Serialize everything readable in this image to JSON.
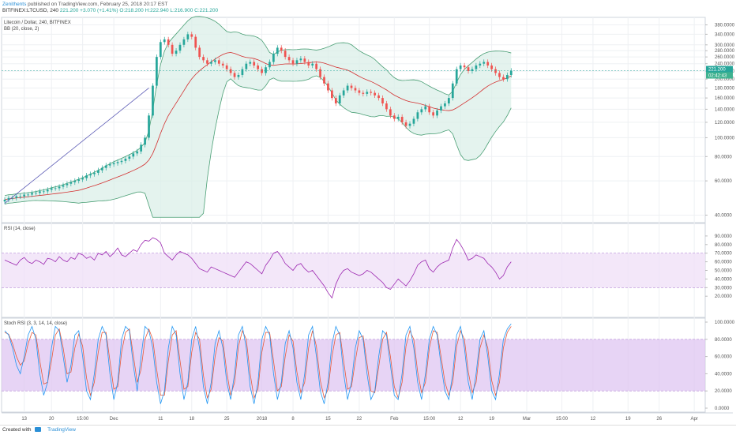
{
  "header": {
    "author": "Zenithents",
    "published": "published on TradingView.com, February 25, 2018 20:17 EST",
    "symbol": "BITFINEX:LTCUSD, 240",
    "last": "221.200",
    "change": "+3.070 (+1.41%)",
    "open": "O:218.200",
    "high": "H:222.940",
    "low": "L:216.900",
    "close": "C:221.200"
  },
  "footer": {
    "created_with": "Created with",
    "brand": "TradingView"
  },
  "colors": {
    "up": "#26a69a",
    "down": "#ef5350",
    "bb_fill": "#d9eee7",
    "bb_line": "#4a9f75",
    "bb_mid": "#d32f2f",
    "rsi_line": "#9c27b0",
    "rsi_band": "#f0e1f7",
    "stoch_band": "#dfc6f2",
    "stoch_k": "#2196f3",
    "stoch_d": "#e65a3c",
    "trendline": "#5c5bb5"
  },
  "chart_data": [
    {
      "type": "line",
      "panel": "price",
      "title": "Litecoin / Dollar, 240, BITFINEX",
      "study": "BB (20, close, 2)",
      "price_tag": "221.200",
      "timer_tag": "02:42:43",
      "y_scale": "log",
      "ylim": [
        38,
        400
      ],
      "y_ticks": [
        "380.0000",
        "340.0000",
        "300.0000",
        "280.0000",
        "260.0000",
        "240.0000",
        "220.0000",
        "200.0000",
        "180.0000",
        "160.0000",
        "140.0000",
        "120.0000",
        "100.0000",
        "80.0000",
        "60.0000",
        "40.0000"
      ],
      "y_tick_values": [
        380,
        340,
        300,
        280,
        260,
        240,
        220,
        200,
        180,
        160,
        140,
        120,
        100,
        80,
        60,
        40
      ],
      "x_ticks": [
        "13",
        "20",
        "15:00",
        "Dec",
        "11",
        "18",
        "25",
        "2018",
        "8",
        "15",
        "22",
        "Feb",
        "15:00",
        "12",
        "19",
        "Mar",
        "15:00",
        "12",
        "19",
        "26",
        "Apr"
      ],
      "x_tick_idx": [
        5,
        12,
        20,
        28,
        40,
        48,
        57,
        66,
        74,
        83,
        91,
        100,
        109,
        117,
        125,
        134,
        143,
        151,
        160,
        168,
        177
      ],
      "x_count": 180,
      "series": [
        {
          "name": "close",
          "values": [
            48,
            49,
            49,
            50,
            50,
            51,
            51,
            52,
            52,
            53,
            53,
            54,
            55,
            55,
            56,
            57,
            58,
            59,
            60,
            61,
            62,
            64,
            65,
            66,
            68,
            70,
            72,
            73,
            74,
            75,
            76,
            78,
            80,
            83,
            85,
            92,
            100,
            130,
            185,
            260,
            310,
            320,
            300,
            270,
            280,
            300,
            320,
            340,
            330,
            290,
            260,
            250,
            240,
            245,
            250,
            240,
            235,
            225,
            215,
            205,
            210,
            225,
            240,
            245,
            235,
            225,
            215,
            230,
            245,
            270,
            290,
            280,
            260,
            250,
            240,
            250,
            255,
            245,
            235,
            240,
            225,
            205,
            190,
            175,
            160,
            150,
            165,
            175,
            185,
            180,
            175,
            170,
            168,
            172,
            170,
            165,
            160,
            150,
            140,
            130,
            125,
            128,
            120,
            115,
            118,
            125,
            135,
            140,
            145,
            135,
            130,
            138,
            145,
            150,
            160,
            190,
            225,
            235,
            230,
            220,
            225,
            235,
            240,
            245,
            235,
            225,
            215,
            205,
            200,
            210,
            221
          ]
        }
      ]
    },
    {
      "type": "line",
      "panel": "rsi",
      "title": "RSI (14, close)",
      "ylim": [
        0,
        100
      ],
      "y_ticks": [
        "90.0000",
        "80.0000",
        "70.0000",
        "60.0000",
        "50.0000",
        "40.0000",
        "30.0000",
        "20.0000"
      ],
      "y_tick_values": [
        90,
        80,
        70,
        60,
        50,
        40,
        30,
        20
      ],
      "band": [
        30,
        70
      ],
      "series": [
        {
          "name": "RSI",
          "values": [
            62,
            60,
            58,
            56,
            62,
            65,
            60,
            58,
            62,
            60,
            57,
            64,
            63,
            60,
            66,
            62,
            60,
            65,
            63,
            70,
            68,
            64,
            66,
            62,
            70,
            68,
            72,
            66,
            70,
            76,
            68,
            66,
            70,
            74,
            72,
            80,
            85,
            84,
            88,
            86,
            82,
            70,
            66,
            62,
            68,
            72,
            70,
            68,
            64,
            58,
            52,
            50,
            48,
            54,
            52,
            50,
            48,
            46,
            44,
            42,
            48,
            54,
            60,
            58,
            54,
            50,
            46,
            56,
            62,
            70,
            72,
            66,
            58,
            54,
            50,
            56,
            58,
            52,
            48,
            50,
            44,
            38,
            32,
            24,
            18,
            34,
            44,
            50,
            52,
            48,
            46,
            44,
            46,
            50,
            48,
            44,
            40,
            36,
            30,
            28,
            34,
            40,
            36,
            32,
            38,
            46,
            56,
            60,
            62,
            52,
            48,
            54,
            58,
            60,
            62,
            76,
            86,
            80,
            72,
            62,
            64,
            68,
            66,
            64,
            58,
            54,
            48,
            40,
            44,
            54,
            60
          ]
        }
      ]
    },
    {
      "type": "line",
      "panel": "stoch",
      "title": "Stoch RSI (3, 3, 14, 14, close)",
      "ylim": [
        0,
        100
      ],
      "y_ticks": [
        "100.0000",
        "80.0000",
        "60.0000",
        "40.0000",
        "20.0000",
        "0.0000"
      ],
      "y_tick_values": [
        100,
        80,
        60,
        40,
        20,
        0
      ],
      "band": [
        20,
        80
      ],
      "series": [
        {
          "name": "K",
          "values": [
            90,
            85,
            70,
            50,
            40,
            60,
            85,
            95,
            80,
            40,
            15,
            30,
            70,
            95,
            90,
            60,
            30,
            50,
            85,
            90,
            60,
            20,
            10,
            40,
            80,
            95,
            85,
            40,
            10,
            30,
            80,
            95,
            90,
            50,
            20,
            60,
            95,
            90,
            70,
            30,
            5,
            20,
            70,
            95,
            85,
            40,
            10,
            30,
            80,
            95,
            70,
            25,
            5,
            30,
            75,
            90,
            70,
            30,
            10,
            40,
            85,
            95,
            70,
            25,
            5,
            30,
            80,
            95,
            85,
            40,
            10,
            30,
            75,
            90,
            70,
            30,
            10,
            40,
            85,
            95,
            60,
            20,
            5,
            30,
            75,
            95,
            85,
            40,
            10,
            30,
            70,
            90,
            80,
            40,
            10,
            20,
            60,
            90,
            85,
            50,
            15,
            10,
            40,
            85,
            95,
            70,
            30,
            10,
            40,
            80,
            95,
            85,
            50,
            20,
            10,
            40,
            85,
            95,
            70,
            30,
            10,
            40,
            80,
            90,
            60,
            20,
            10,
            40,
            80,
            92,
            98
          ]
        },
        {
          "name": "D",
          "values": [
            88,
            86,
            75,
            60,
            50,
            55,
            75,
            88,
            85,
            55,
            28,
            30,
            55,
            85,
            92,
            70,
            40,
            42,
            70,
            86,
            72,
            35,
            15,
            30,
            65,
            88,
            88,
            55,
            22,
            25,
            65,
            88,
            92,
            62,
            30,
            45,
            80,
            92,
            80,
            45,
            15,
            15,
            55,
            85,
            90,
            55,
            22,
            25,
            65,
            88,
            80,
            38,
            12,
            22,
            60,
            82,
            78,
            42,
            15,
            30,
            72,
            90,
            80,
            40,
            12,
            22,
            65,
            88,
            88,
            55,
            20,
            25,
            60,
            85,
            78,
            42,
            18,
            30,
            70,
            90,
            72,
            32,
            12,
            22,
            60,
            85,
            88,
            55,
            22,
            25,
            55,
            82,
            84,
            52,
            20,
            18,
            48,
            80,
            88,
            60,
            25,
            12,
            30,
            72,
            90,
            80,
            42,
            18,
            30,
            70,
            90,
            88,
            60,
            30,
            15,
            30,
            72,
            90,
            80,
            42,
            18,
            30,
            70,
            85,
            70,
            32,
            15,
            30,
            70,
            88,
            95
          ]
        }
      ]
    }
  ]
}
